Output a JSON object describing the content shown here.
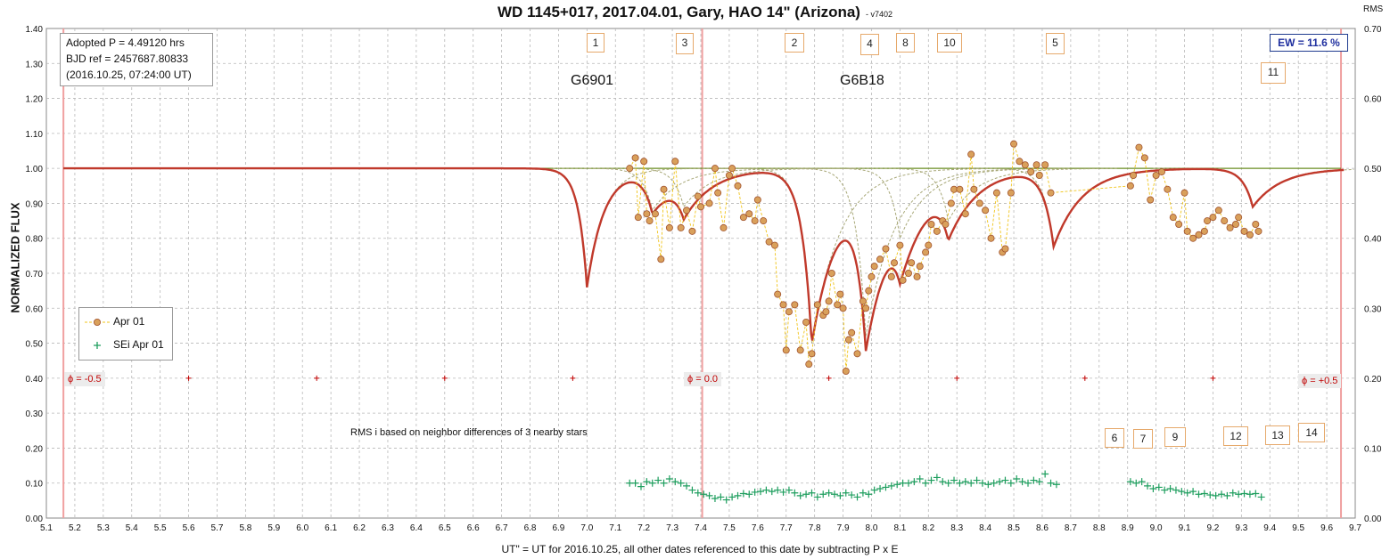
{
  "title": "WD 1145+017, 2017.04.01, Gary, HAO 14\" (Arizona)",
  "version": "- v7402",
  "rms_axis_label": "RMS",
  "info": {
    "line1": "Adopted P = 4.49120  hrs",
    "line2": "BJD ref = 2457687.80833",
    "line3": "(2016.10.25,  07:24:00  UT)"
  },
  "ew_label": "EW = 11.6  %",
  "legend": {
    "flux": "Apr 01",
    "sei": "SEi Apr 01"
  },
  "group_labels": {
    "g1": "G6901",
    "g2": "G6B18"
  },
  "phase_labels": {
    "minus": "ϕ = -0.5",
    "zero": "ϕ = 0.0",
    "plus": "ϕ = +0.5"
  },
  "rms_note": "RMS i based on neighbor differences of 3 nearby stars",
  "dip_ids": [
    "1",
    "3",
    "2",
    "4",
    "8",
    "10",
    "5",
    "11",
    "6",
    "7",
    "9",
    "12",
    "13",
    "14"
  ],
  "colors": {
    "model": "#c0392b",
    "points": "#d9a05b",
    "point_edge": "#a0522d",
    "connector": "#f0c419",
    "sei": "#1e9e5e",
    "components": "#a8a878",
    "baseline": "#6b8e23",
    "phase_line": "#f0a0a0"
  },
  "chart_data": {
    "type": "scatter",
    "title": "WD 1145+017, 2017.04.01, Gary, HAO 14\" (Arizona)",
    "xlabel": "UT\" = UT for 2016.10.25, all other dates referenced to this date by subtracting P x E",
    "ylabel": "NORMALIZED FLUX",
    "y2label": "RMS",
    "xlim": [
      5.1,
      9.7
    ],
    "ylim": [
      0.0,
      1.4
    ],
    "y2lim": [
      0.0,
      0.7
    ],
    "grid": true,
    "legend_position": "left-middle",
    "x_ticks": [
      "5.1",
      "5.2",
      "5.3",
      "5.4",
      "5.5",
      "5.6",
      "5.7",
      "5.8",
      "5.9",
      "6.0",
      "6.1",
      "6.2",
      "6.3",
      "6.4",
      "6.5",
      "6.6",
      "6.7",
      "6.8",
      "6.9",
      "7.0",
      "7.1",
      "7.2",
      "7.3",
      "7.4",
      "7.5",
      "7.6",
      "7.7",
      "7.8",
      "7.9",
      "8.0",
      "8.1",
      "8.2",
      "8.3",
      "8.4",
      "8.5",
      "8.6",
      "8.7",
      "8.8",
      "8.9",
      "9.0",
      "9.1",
      "9.2",
      "9.3",
      "9.4",
      "9.5",
      "9.6",
      "9.7"
    ],
    "y_ticks": [
      "0.00",
      "0.10",
      "0.20",
      "0.30",
      "0.40",
      "0.50",
      "0.60",
      "0.70",
      "0.80",
      "0.90",
      "1.00",
      "1.10",
      "1.20",
      "1.30",
      "1.40"
    ],
    "y2_ticks": [
      "0.00",
      "0.10",
      "0.20",
      "0.30",
      "0.40",
      "0.50",
      "0.60",
      "0.70"
    ],
    "series": [
      {
        "name": "Apr 01",
        "x": [
          7.15,
          7.17,
          7.18,
          7.2,
          7.21,
          7.22,
          7.24,
          7.26,
          7.27,
          7.29,
          7.31,
          7.33,
          7.35,
          7.37,
          7.39,
          7.4,
          7.43,
          7.45,
          7.46,
          7.48,
          7.5,
          7.51,
          7.53,
          7.55,
          7.57,
          7.59,
          7.6,
          7.62,
          7.64,
          7.66,
          7.67,
          7.69,
          7.7,
          7.71,
          7.73,
          7.75,
          7.77,
          7.78,
          7.79,
          7.81,
          7.83,
          7.84,
          7.85,
          7.86,
          7.88,
          7.89,
          7.9,
          7.91,
          7.92,
          7.93,
          7.95,
          7.97,
          7.98,
          7.99,
          8.0,
          8.01,
          8.03,
          8.05,
          8.07,
          8.08,
          8.1,
          8.11,
          8.13,
          8.14,
          8.16,
          8.17,
          8.19,
          8.2,
          8.21,
          8.23,
          8.25,
          8.26,
          8.28,
          8.29,
          8.31,
          8.33,
          8.35,
          8.36,
          8.38,
          8.4,
          8.42,
          8.44,
          8.46,
          8.47,
          8.49,
          8.5,
          8.52,
          8.54,
          8.56,
          8.58,
          8.59,
          8.61,
          8.63,
          8.91,
          8.92,
          8.94,
          8.96,
          8.98,
          9.0,
          9.02,
          9.04,
          9.06,
          9.08,
          9.1,
          9.11,
          9.13,
          9.15,
          9.17,
          9.18,
          9.2,
          9.22,
          9.24,
          9.26,
          9.28,
          9.29,
          9.31,
          9.33,
          9.35,
          9.36
        ],
        "values": [
          1.0,
          1.03,
          0.86,
          1.02,
          0.87,
          0.85,
          0.87,
          0.74,
          0.94,
          0.83,
          1.02,
          0.83,
          0.88,
          0.82,
          0.92,
          0.89,
          0.9,
          1.0,
          0.93,
          0.83,
          0.98,
          1.0,
          0.95,
          0.86,
          0.87,
          0.85,
          0.91,
          0.85,
          0.79,
          0.78,
          0.64,
          0.61,
          0.48,
          0.59,
          0.61,
          0.48,
          0.56,
          0.44,
          0.47,
          0.61,
          0.58,
          0.59,
          0.62,
          0.7,
          0.61,
          0.64,
          0.6,
          0.42,
          0.51,
          0.53,
          0.47,
          0.62,
          0.6,
          0.65,
          0.69,
          0.72,
          0.74,
          0.77,
          0.69,
          0.73,
          0.78,
          0.68,
          0.7,
          0.73,
          0.69,
          0.72,
          0.76,
          0.78,
          0.84,
          0.82,
          0.85,
          0.84,
          0.9,
          0.94,
          0.94,
          0.87,
          1.04,
          0.94,
          0.9,
          0.88,
          0.8,
          0.93,
          0.76,
          0.77,
          0.93,
          1.07,
          1.02,
          1.01,
          0.99,
          1.01,
          0.98,
          1.01,
          0.93,
          0.95,
          0.98,
          1.06,
          1.03,
          0.91,
          0.98,
          0.99,
          0.94,
          0.86,
          0.84,
          0.93,
          0.82,
          0.8,
          0.81,
          0.82,
          0.85,
          0.86,
          0.88,
          0.85,
          0.83,
          0.84,
          0.86,
          0.82,
          0.81,
          0.84,
          0.82
        ]
      },
      {
        "name": "SEi Apr 01",
        "axis": "right",
        "x": [
          7.15,
          7.17,
          7.19,
          7.21,
          7.23,
          7.25,
          7.27,
          7.29,
          7.31,
          7.33,
          7.35,
          7.37,
          7.39,
          7.41,
          7.43,
          7.45,
          7.47,
          7.49,
          7.51,
          7.53,
          7.55,
          7.57,
          7.59,
          7.61,
          7.63,
          7.65,
          7.67,
          7.69,
          7.71,
          7.73,
          7.75,
          7.77,
          7.79,
          7.81,
          7.83,
          7.85,
          7.87,
          7.89,
          7.91,
          7.93,
          7.95,
          7.97,
          7.99,
          8.01,
          8.03,
          8.05,
          8.07,
          8.09,
          8.11,
          8.13,
          8.15,
          8.17,
          8.19,
          8.21,
          8.23,
          8.25,
          8.27,
          8.29,
          8.31,
          8.33,
          8.35,
          8.37,
          8.39,
          8.41,
          8.43,
          8.45,
          8.47,
          8.49,
          8.51,
          8.53,
          8.55,
          8.57,
          8.59,
          8.61,
          8.63,
          8.65,
          8.91,
          8.93,
          8.95,
          8.97,
          8.99,
          9.01,
          9.03,
          9.05,
          9.07,
          9.09,
          9.11,
          9.13,
          9.15,
          9.17,
          9.19,
          9.21,
          9.23,
          9.25,
          9.27,
          9.29,
          9.31,
          9.33,
          9.35,
          9.37
        ],
        "values": [
          0.05,
          0.05,
          0.045,
          0.052,
          0.05,
          0.054,
          0.05,
          0.056,
          0.052,
          0.05,
          0.046,
          0.04,
          0.036,
          0.034,
          0.032,
          0.028,
          0.03,
          0.026,
          0.03,
          0.032,
          0.035,
          0.034,
          0.037,
          0.038,
          0.04,
          0.038,
          0.04,
          0.037,
          0.04,
          0.036,
          0.032,
          0.034,
          0.036,
          0.03,
          0.034,
          0.036,
          0.034,
          0.032,
          0.036,
          0.033,
          0.03,
          0.036,
          0.034,
          0.04,
          0.042,
          0.044,
          0.046,
          0.048,
          0.05,
          0.05,
          0.052,
          0.056,
          0.05,
          0.054,
          0.058,
          0.052,
          0.05,
          0.054,
          0.05,
          0.052,
          0.05,
          0.054,
          0.05,
          0.048,
          0.05,
          0.052,
          0.054,
          0.05,
          0.056,
          0.052,
          0.05,
          0.054,
          0.052,
          0.063,
          0.05,
          0.048,
          0.052,
          0.05,
          0.052,
          0.046,
          0.042,
          0.044,
          0.04,
          0.042,
          0.04,
          0.038,
          0.036,
          0.038,
          0.034,
          0.035,
          0.033,
          0.032,
          0.034,
          0.032,
          0.036,
          0.034,
          0.035,
          0.034,
          0.035,
          0.03
        ]
      }
    ],
    "model_dips": [
      {
        "id": "G6901",
        "center": 7.0,
        "depth": 0.34
      },
      {
        "id": "1",
        "center": 7.23,
        "depth": 0.12
      },
      {
        "id": "3",
        "center": 7.34,
        "depth": 0.11
      },
      {
        "id": "2",
        "center": 7.79,
        "depth": 0.5
      },
      {
        "id": "4",
        "center": 7.98,
        "depth": 0.48
      },
      {
        "id": "8",
        "center": 8.1,
        "depth": 0.2
      },
      {
        "id": "10",
        "center": 8.27,
        "depth": 0.15
      },
      {
        "id": "5",
        "center": 8.64,
        "depth": 0.22
      },
      {
        "id": "11",
        "center": 9.34,
        "depth": 0.11
      }
    ],
    "phase_markers_x": [
      5.6,
      6.05,
      6.5,
      6.95,
      7.85,
      8.3,
      8.75,
      9.2
    ],
    "phase_markers_y": 0.4,
    "phase_lines_x": [
      5.16,
      7.405,
      9.65
    ]
  }
}
